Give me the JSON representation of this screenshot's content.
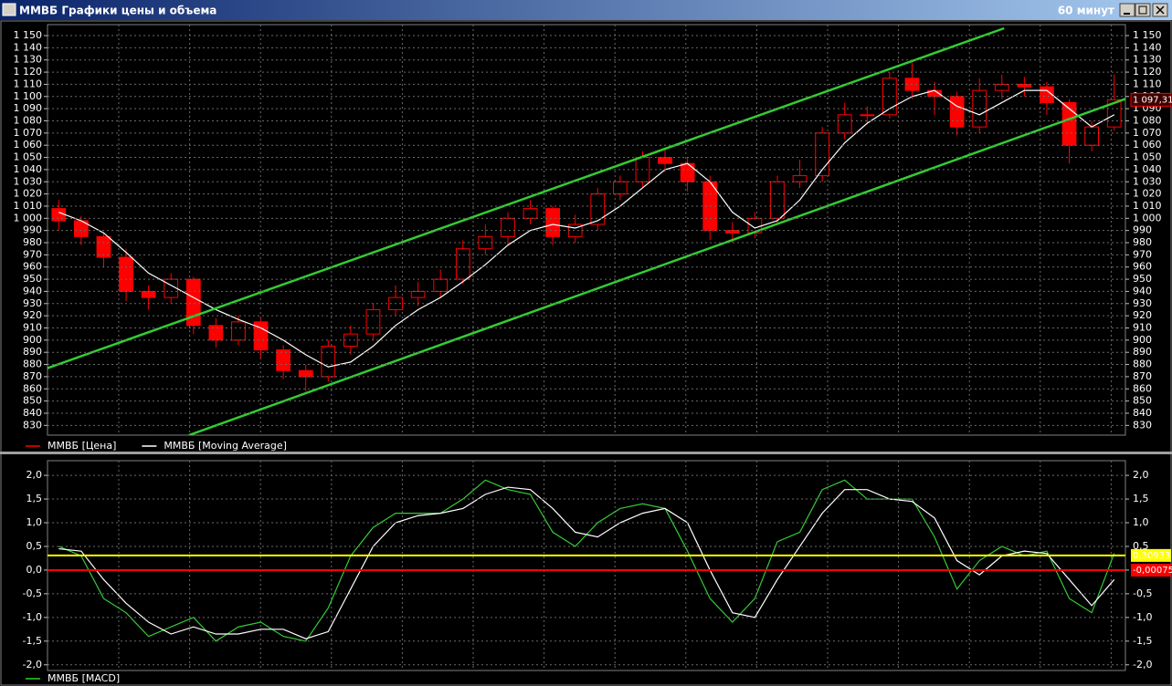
{
  "window": {
    "title": "ММВБ Графики цены и объема",
    "timeframe": "60 минут"
  },
  "chart_data": [
    {
      "type": "candlestick",
      "grid": true,
      "series": [
        {
          "name": "ММВБ [Цена]",
          "color": "#ff0000",
          "open": [
            1008,
            998,
            985,
            968,
            940,
            935,
            950,
            912,
            900,
            915,
            892,
            875,
            870,
            895,
            905,
            925,
            935,
            940,
            950,
            975,
            985,
            1000,
            1008,
            985,
            995,
            1020,
            1030,
            1050,
            1045,
            1030,
            990,
            988,
            1000,
            1030,
            1035,
            1070,
            1085,
            1085,
            1115,
            1105,
            1100,
            1075,
            1105,
            1110,
            1108,
            1095,
            1060,
            1075
          ],
          "high": [
            1015,
            1002,
            988,
            975,
            945,
            955,
            952,
            918,
            920,
            918,
            896,
            880,
            900,
            912,
            930,
            945,
            948,
            958,
            982,
            995,
            1005,
            1015,
            1010,
            1003,
            1025,
            1035,
            1055,
            1058,
            1050,
            1035,
            997,
            1005,
            1035,
            1048,
            1075,
            1095,
            1092,
            1120,
            1128,
            1112,
            1104,
            1115,
            1118,
            1116,
            1112,
            1098,
            1080,
            1118
          ],
          "low": [
            990,
            978,
            960,
            932,
            925,
            930,
            905,
            894,
            896,
            885,
            868,
            858,
            866,
            888,
            900,
            920,
            928,
            935,
            946,
            970,
            978,
            995,
            978,
            980,
            990,
            1015,
            1025,
            1038,
            1022,
            982,
            980,
            984,
            996,
            1025,
            1030,
            1065,
            1078,
            1082,
            1098,
            1085,
            1068,
            1070,
            1098,
            1100,
            1085,
            1045,
            1055,
            1072
          ],
          "close": [
            998,
            985,
            968,
            940,
            935,
            950,
            912,
            900,
            915,
            892,
            875,
            870,
            895,
            905,
            925,
            935,
            940,
            950,
            975,
            985,
            1000,
            1008,
            985,
            995,
            1020,
            1030,
            1050,
            1045,
            1030,
            990,
            988,
            1000,
            1030,
            1035,
            1070,
            1085,
            1085,
            1115,
            1105,
            1100,
            1075,
            1105,
            1110,
            1108,
            1095,
            1060,
            1075,
            1097.31
          ]
        },
        {
          "name": "ММВБ [Moving Average]",
          "color": "#ffffff",
          "type": "line",
          "values": [
            1005,
            998,
            988,
            972,
            955,
            945,
            935,
            925,
            917,
            910,
            900,
            888,
            878,
            882,
            895,
            912,
            925,
            935,
            948,
            962,
            978,
            990,
            995,
            992,
            998,
            1010,
            1025,
            1040,
            1045,
            1030,
            1005,
            992,
            998,
            1015,
            1040,
            1062,
            1078,
            1090,
            1100,
            1105,
            1092,
            1085,
            1095,
            1105,
            1105,
            1090,
            1075,
            1085
          ]
        }
      ],
      "trendlines": [
        {
          "color": "#33cc33",
          "x": [
            -0.5,
            42.1
          ],
          "y": [
            877,
            1156
          ]
        },
        {
          "color": "#33cc33",
          "x": [
            5.8,
            47.5
          ],
          "y": [
            822,
            1098
          ]
        }
      ],
      "last_price": {
        "value": 1097.31,
        "label": "1 097,31"
      },
      "ylim": [
        822,
        1159
      ],
      "yticks": [
        830,
        840,
        850,
        860,
        870,
        880,
        890,
        900,
        910,
        920,
        930,
        940,
        950,
        960,
        970,
        980,
        990,
        {
          "value": 1000,
          "label": "1 000"
        },
        {
          "value": 1010,
          "label": "1 010"
        },
        {
          "value": 1020,
          "label": "1 020"
        },
        {
          "value": 1030,
          "label": "1 030"
        },
        {
          "value": 1040,
          "label": "1 040"
        },
        {
          "value": 1050,
          "label": "1 050"
        },
        {
          "value": 1060,
          "label": "1 060"
        },
        {
          "value": 1070,
          "label": "1 070"
        },
        {
          "value": 1080,
          "label": "1 080"
        },
        {
          "value": 1090,
          "label": "1 090"
        },
        {
          "value": 1100,
          "label": "1 100"
        },
        {
          "value": 1110,
          "label": "1 110"
        },
        {
          "value": 1120,
          "label": "1 120"
        },
        {
          "value": 1130,
          "label": "1 130"
        },
        {
          "value": 1140,
          "label": "1 140"
        },
        {
          "value": 1150,
          "label": "1 150"
        }
      ]
    },
    {
      "type": "line",
      "grid": true,
      "series": [
        {
          "name": "ММВБ [MACD]",
          "color": "#33cc33",
          "values": [
            0.5,
            0.3,
            -0.6,
            -0.9,
            -1.4,
            -1.2,
            -1.0,
            -1.5,
            -1.2,
            -1.1,
            -1.4,
            -1.5,
            -0.8,
            0.3,
            0.9,
            1.2,
            1.2,
            1.2,
            1.5,
            1.9,
            1.7,
            1.6,
            0.8,
            0.5,
            1.0,
            1.3,
            1.4,
            1.3,
            0.4,
            -0.6,
            -1.1,
            -0.6,
            0.6,
            0.8,
            1.7,
            1.9,
            1.5,
            1.5,
            1.5,
            0.7,
            -0.4,
            0.2,
            0.5,
            0.3,
            0.4,
            -0.6,
            -0.9,
            0.35
          ]
        },
        {
          "color": "#ffffff",
          "values": [
            0.45,
            0.4,
            -0.2,
            -0.7,
            -1.1,
            -1.35,
            -1.2,
            -1.35,
            -1.35,
            -1.25,
            -1.25,
            -1.45,
            -1.3,
            -0.4,
            0.5,
            1.0,
            1.15,
            1.2,
            1.3,
            1.6,
            1.75,
            1.7,
            1.3,
            0.8,
            0.7,
            1.0,
            1.2,
            1.3,
            1.0,
            0.0,
            -0.9,
            -1.0,
            -0.2,
            0.5,
            1.2,
            1.7,
            1.7,
            1.5,
            1.45,
            1.1,
            0.2,
            -0.1,
            0.3,
            0.4,
            0.35,
            -0.2,
            -0.75,
            -0.2
          ]
        }
      ],
      "levels": [
        {
          "value": 0.30933,
          "label": "0,30933",
          "color": "#ffff00"
        },
        {
          "value": -0.00075,
          "label": "-0,00075",
          "color": "#ff0000"
        }
      ],
      "ylim": [
        -2.12,
        2.31
      ],
      "yticks": [
        {
          "value": -2,
          "label": "-2,0"
        },
        {
          "value": -1.5,
          "label": "-1,5"
        },
        {
          "value": -1,
          "label": "-1,0"
        },
        {
          "value": -0.5,
          "label": "-0,5"
        },
        {
          "value": 0,
          "label": "0,0"
        },
        {
          "value": 0.5,
          "label": "0,5"
        },
        {
          "value": 1,
          "label": "1,0"
        },
        {
          "value": 1.5,
          "label": "1,5"
        },
        {
          "value": 2,
          "label": "2,0"
        }
      ]
    }
  ]
}
